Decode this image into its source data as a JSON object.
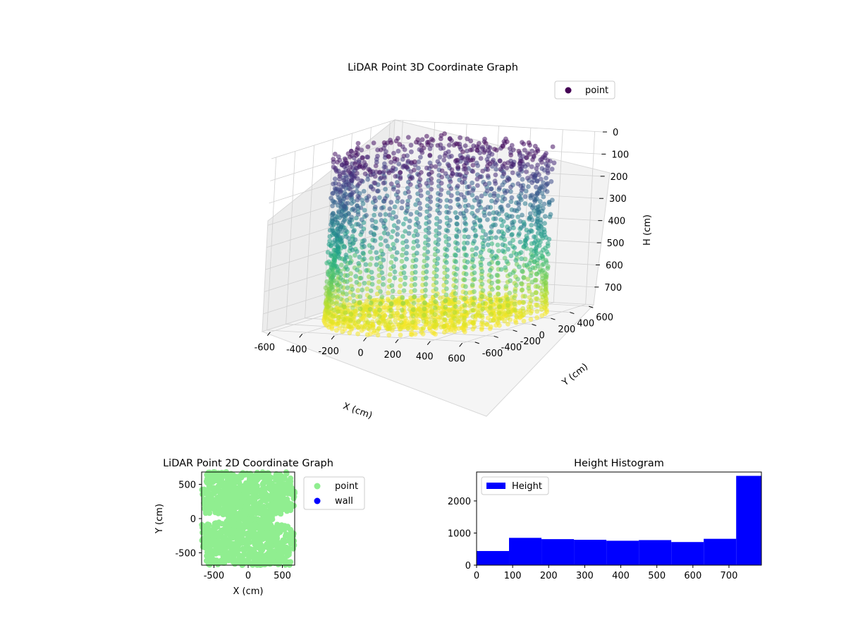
{
  "chart_data": [
    {
      "type": "scatter",
      "projection": "3d",
      "title": "LiDAR Point 3D Coordinate Graph",
      "xlabel": "X (cm)",
      "ylabel": "Y (cm)",
      "zlabel": "H (cm)",
      "xlim": [
        -650,
        650
      ],
      "ylim": [
        -650,
        650
      ],
      "zlim": [
        780,
        0
      ],
      "z_axis_inverted": true,
      "x_ticks": [
        "-600",
        "-400",
        "-200",
        "0",
        "200",
        "400",
        "600"
      ],
      "y_ticks": [
        "-600",
        "-400",
        "-200",
        "0",
        "200",
        "400",
        "600"
      ],
      "z_ticks": [
        "0",
        "100",
        "200",
        "300",
        "400",
        "500",
        "600",
        "700"
      ],
      "colormap": "viridis",
      "color_by": "height",
      "grid": true,
      "legend": {
        "position": "top-right",
        "entries": [
          {
            "label": "point",
            "color": "#440154"
          }
        ]
      },
      "series": [
        {
          "name": "point",
          "description_ranges": {
            "x": [
              -650,
              650
            ],
            "y": [
              -650,
              650
            ],
            "h": [
              0,
              780
            ]
          }
        }
      ]
    },
    {
      "type": "scatter",
      "title": "LiDAR Point 2D Coordinate Graph",
      "xlabel": "X (cm)",
      "ylabel": "Y (cm)",
      "xlim": [
        -680,
        680
      ],
      "ylim": [
        -680,
        680
      ],
      "x_ticks": [
        "-500",
        "0",
        "500"
      ],
      "y_ticks": [
        "-500",
        "0",
        "500"
      ],
      "legend": {
        "position": "outside-right",
        "entries": [
          {
            "label": "point",
            "color": "#90ee90"
          },
          {
            "label": "wall",
            "color": "#0000ff"
          }
        ]
      },
      "series": [
        {
          "name": "point",
          "color": "#90ee90"
        },
        {
          "name": "wall",
          "color": "#0000ff"
        }
      ]
    },
    {
      "type": "bar",
      "title": "Height Histogram",
      "xlim": [
        0,
        790
      ],
      "ylim": [
        0,
        2900
      ],
      "x_ticks": [
        "0",
        "100",
        "200",
        "300",
        "400",
        "500",
        "600",
        "700"
      ],
      "y_ticks": [
        "0",
        "1000",
        "2000"
      ],
      "legend": {
        "position": "top-left",
        "entries": [
          {
            "label": "Height",
            "color": "#0000ff"
          }
        ]
      },
      "bin_edges": [
        0,
        90,
        180,
        270,
        360,
        450,
        540,
        630,
        720,
        790
      ],
      "series": [
        {
          "name": "Height",
          "color": "#0000ff",
          "values": [
            440,
            850,
            810,
            790,
            760,
            780,
            720,
            820,
            2780
          ]
        }
      ]
    }
  ]
}
